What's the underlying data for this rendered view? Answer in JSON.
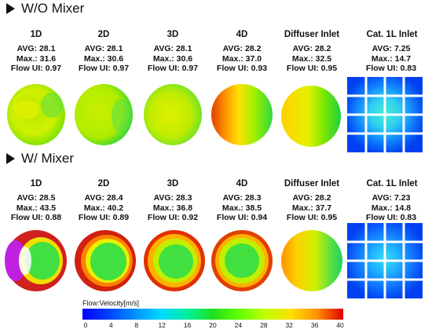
{
  "sections": [
    {
      "title": "W/O Mixer",
      "columns": [
        {
          "name": "1D",
          "avg": "AVG: 28.1",
          "max": "Max.: 31.6",
          "ui": "Flow UI: 0.97"
        },
        {
          "name": "2D",
          "avg": "AVG: 28.1",
          "max": "Max.: 30.6",
          "ui": "Flow UI: 0.97"
        },
        {
          "name": "3D",
          "avg": "AVG: 28.1",
          "max": "Max.: 30.6",
          "ui": "Flow UI: 0.97"
        },
        {
          "name": "4D",
          "avg": "AVG: 28.2",
          "max": "Max.: 37.0",
          "ui": "Flow UI: 0.93"
        },
        {
          "name": "Diffuser Inlet",
          "avg": "AVG: 28.2",
          "max": "Max.: 32.5",
          "ui": "Flow UI: 0.95"
        },
        {
          "name": "Cat. 1L Inlet",
          "avg": "AVG: 7.25",
          "max": "Max.: 14.7",
          "ui": "Flow UI: 0.83"
        }
      ]
    },
    {
      "title": "W/ Mixer",
      "columns": [
        {
          "name": "1D",
          "avg": "AVG: 28.5",
          "max": "Max.: 43.5",
          "ui": "Flow UI: 0.88"
        },
        {
          "name": "2D",
          "avg": "AVG: 28.4",
          "max": "Max.: 40.2",
          "ui": "Flow UI: 0.89"
        },
        {
          "name": "3D",
          "avg": "AVG: 28.3",
          "max": "Max.: 36.8",
          "ui": "Flow UI: 0.92"
        },
        {
          "name": "4D",
          "avg": "AVG: 28.3",
          "max": "Max.: 38.5",
          "ui": "Flow UI: 0.94"
        },
        {
          "name": "Diffuser Inlet",
          "avg": "AVG: 28.2",
          "max": "Max.: 37.7",
          "ui": "Flow UI: 0.95"
        },
        {
          "name": "Cat. 1L Inlet",
          "avg": "AVG: 7.23",
          "max": "Max.: 14.8",
          "ui": "Flow UI: 0.83"
        }
      ]
    }
  ],
  "legend": {
    "title": "Flow:Velocity[m/s]",
    "ticks": [
      "0",
      "4",
      "8",
      "12",
      "16",
      "20",
      "24",
      "28",
      "32",
      "36",
      "40"
    ],
    "colors": [
      "#0000ff",
      "#0040ff",
      "#0090ff",
      "#00d8ff",
      "#00f0a0",
      "#20e020",
      "#60ff00",
      "#c0ff00",
      "#ffe000",
      "#ff9000",
      "#ff2000",
      "#e00000"
    ]
  }
}
